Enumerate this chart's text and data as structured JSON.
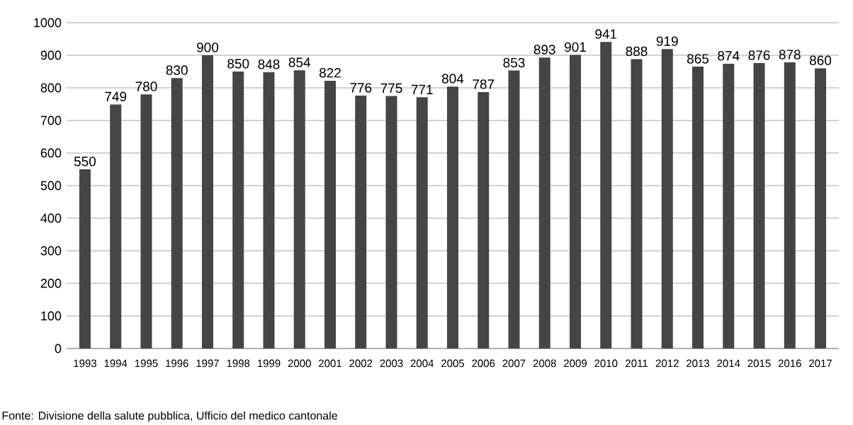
{
  "chart_data": {
    "type": "bar",
    "categories": [
      "1993",
      "1994",
      "1995",
      "1996",
      "1997",
      "1998",
      "1999",
      "2000",
      "2001",
      "2002",
      "2003",
      "2004",
      "2005",
      "2006",
      "2007",
      "2008",
      "2009",
      "2010",
      "2011",
      "2012",
      "2013",
      "2014",
      "2015",
      "2016",
      "2017"
    ],
    "values": [
      550,
      749,
      780,
      830,
      900,
      850,
      848,
      854,
      822,
      776,
      775,
      771,
      804,
      787,
      853,
      893,
      901,
      941,
      888,
      919,
      865,
      874,
      876,
      878,
      860
    ],
    "color": "#454545",
    "ylim": [
      0,
      1000
    ],
    "yticks": [
      0,
      100,
      200,
      300,
      400,
      500,
      600,
      700,
      800,
      900,
      1000
    ],
    "grid": "y",
    "data_labels": true,
    "annotations": [
      "Fonte: Divisione della salute pubblica, Ufficio del medico cantonale"
    ]
  }
}
